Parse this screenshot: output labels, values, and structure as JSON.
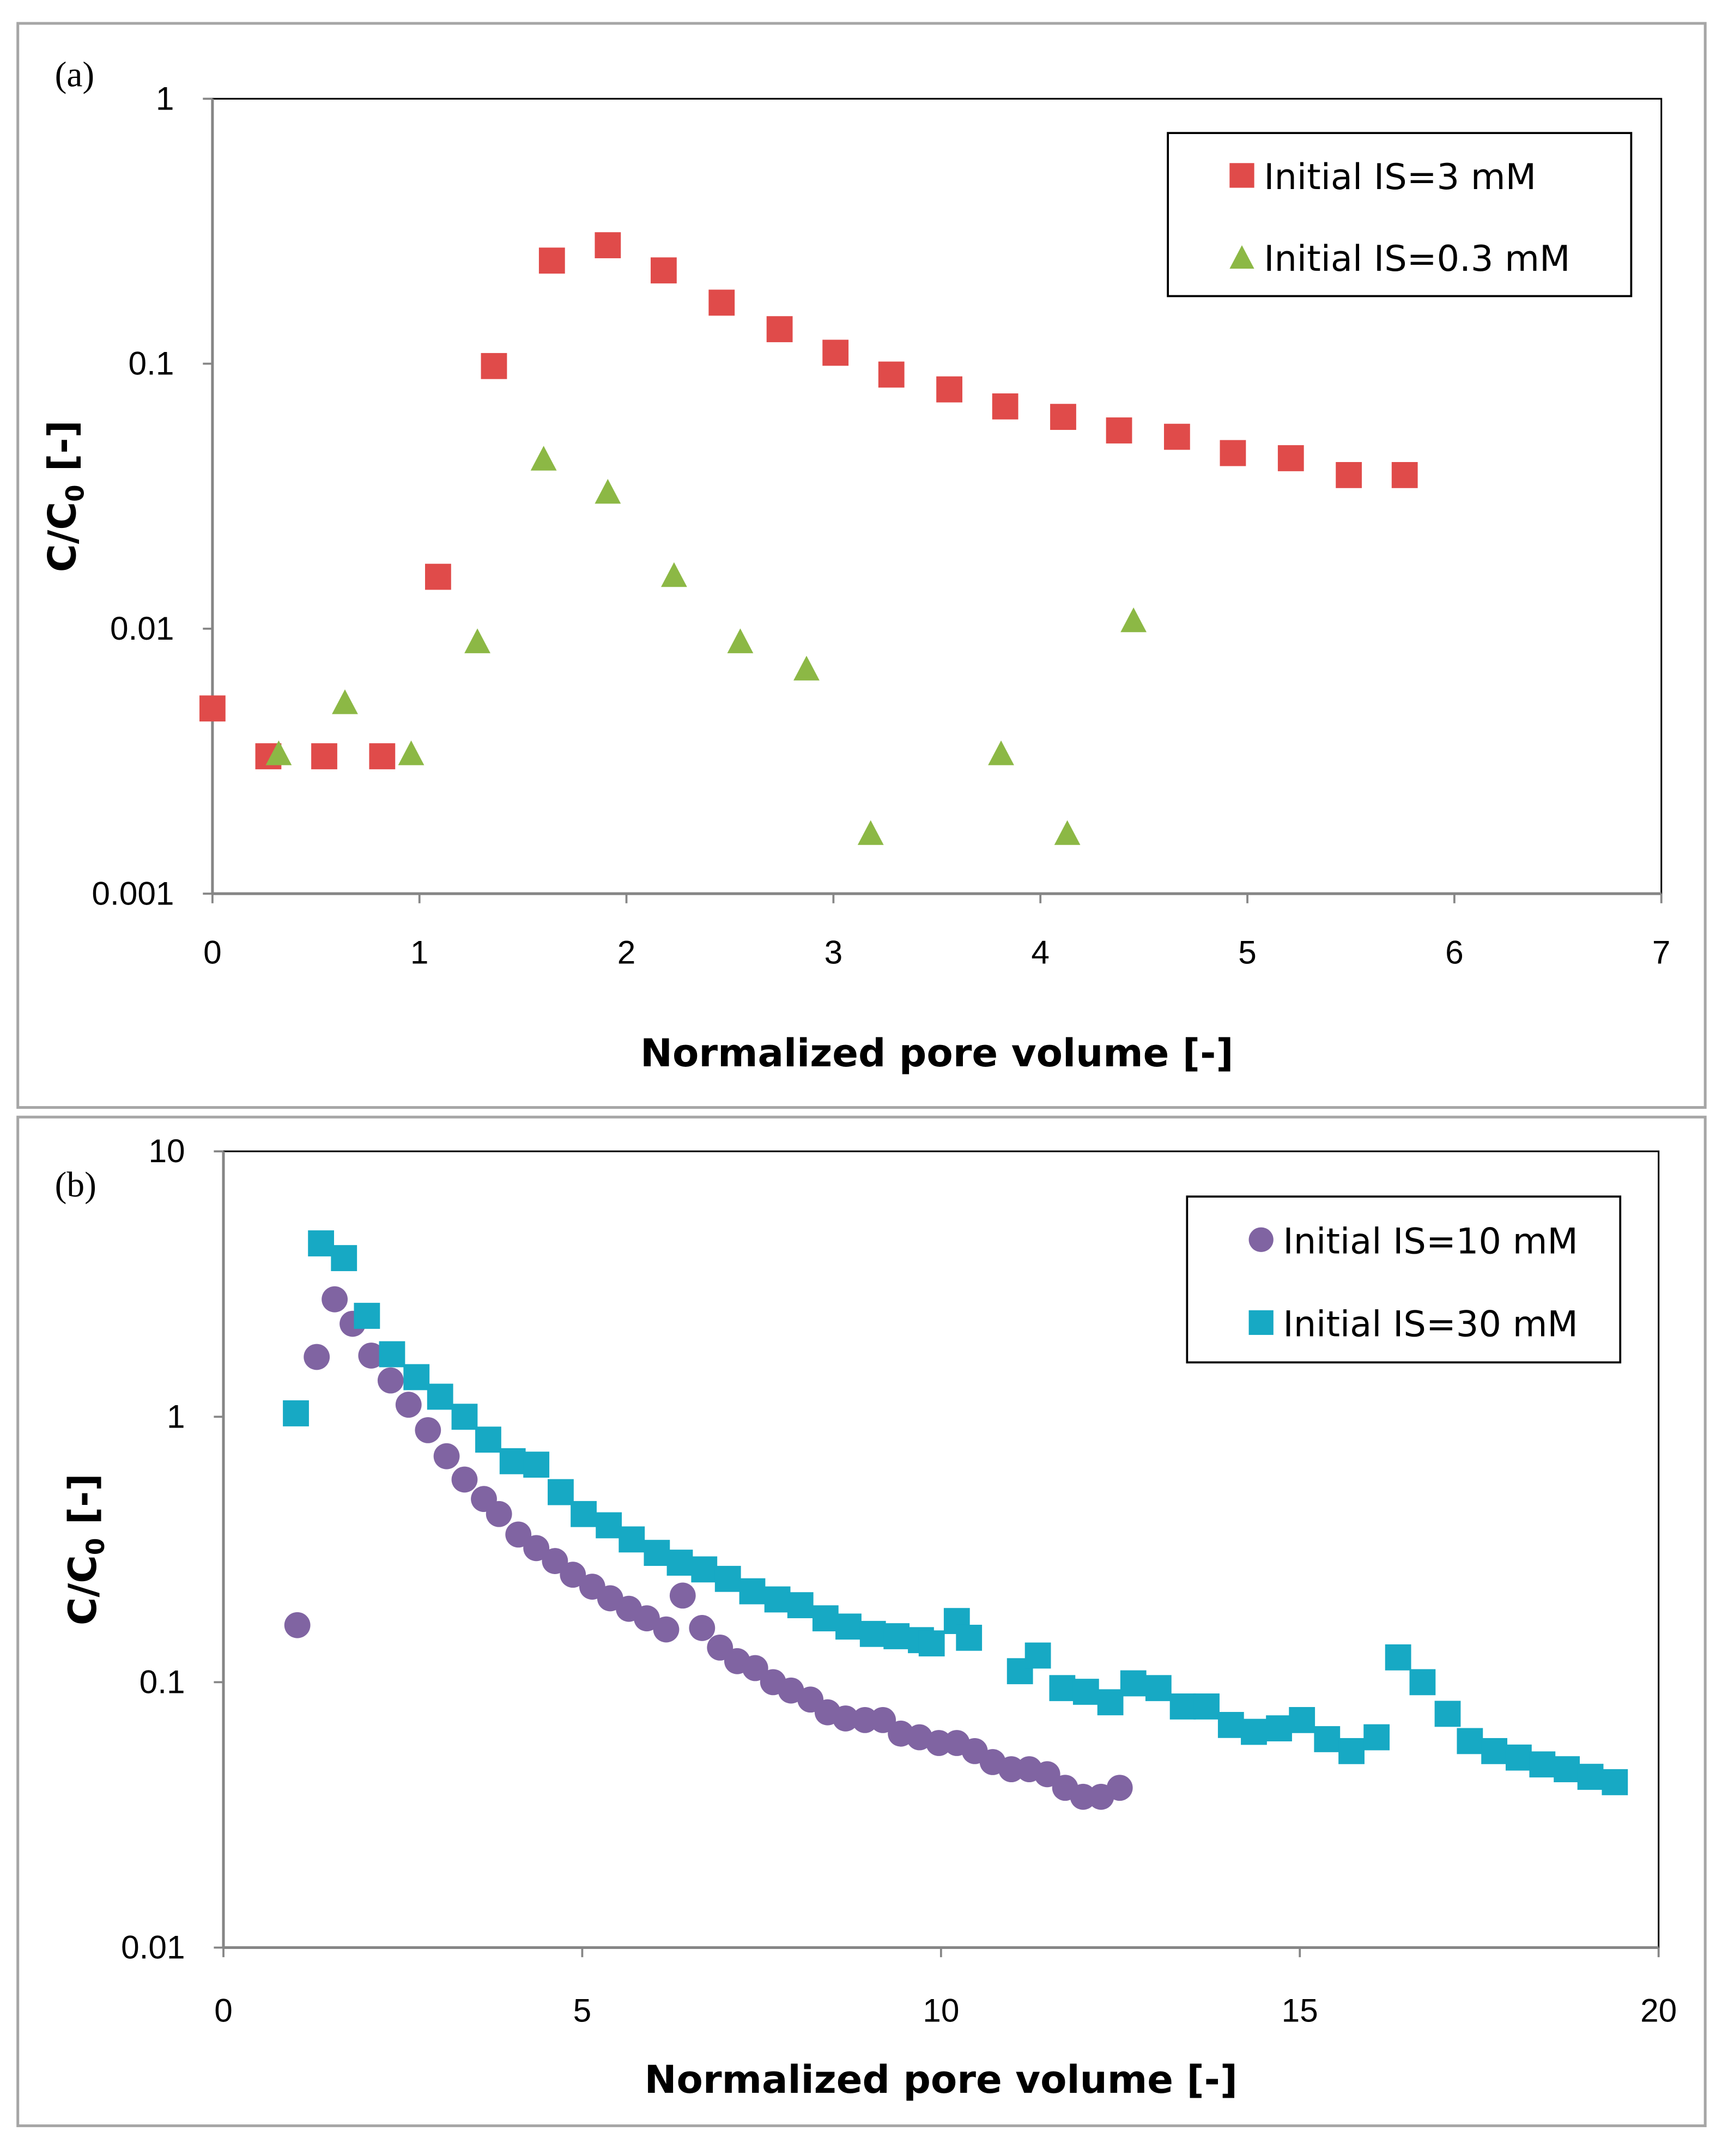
{
  "chart_data": [
    {
      "type": "scatter",
      "panel_label": "(a)",
      "xlabel": "Normalized pore volume [-]",
      "ylabel": "C/C",
      "ylabel_sub": "0",
      "ylabel_suffix": " [-]",
      "xlim": [
        0,
        7
      ],
      "ylim": [
        0.001,
        1
      ],
      "yscale": "log",
      "xticks": [
        "0",
        "1",
        "2",
        "3",
        "4",
        "5",
        "6",
        "7"
      ],
      "yticks": [
        "0.001",
        "0.01",
        "0.1",
        "1"
      ],
      "grid": false,
      "legend_position": "top-right",
      "series": [
        {
          "name": "Initial IS=3 mM",
          "marker": "square",
          "color": "#e04b4a",
          "x": [
            0,
            0.27,
            0.54,
            0.82,
            1.09,
            1.36,
            1.64,
            1.91,
            2.18,
            2.46,
            2.74,
            3.01,
            3.28,
            3.56,
            3.83,
            4.11,
            4.38,
            4.66,
            4.93,
            5.21,
            5.49,
            5.76
          ],
          "y": [
            0.005,
            0.0033,
            0.0033,
            0.0033,
            0.0157,
            0.098,
            0.245,
            0.28,
            0.225,
            0.17,
            0.135,
            0.11,
            0.091,
            0.08,
            0.069,
            0.063,
            0.056,
            0.053,
            0.046,
            0.044,
            0.038,
            0.038
          ]
        },
        {
          "name": "Initial IS=0.3 mM",
          "marker": "triangle",
          "color": "#8cb845",
          "x": [
            0.32,
            0.64,
            0.96,
            1.28,
            1.6,
            1.91,
            2.23,
            2.55,
            2.87,
            3.18,
            3.81,
            4.13,
            4.45
          ],
          "y": [
            0.0034,
            0.0053,
            0.0034,
            0.009,
            0.044,
            0.033,
            0.016,
            0.009,
            0.0071,
            0.0017,
            0.0034,
            0.0017,
            0.0108
          ]
        }
      ]
    },
    {
      "type": "scatter",
      "panel_label": "(b)",
      "xlabel": "Normalized pore volume [-]",
      "ylabel": "C/C",
      "ylabel_sub": "0",
      "ylabel_suffix": " [-]",
      "xlim": [
        0,
        20
      ],
      "ylim": [
        0.01,
        10
      ],
      "yscale": "log",
      "xticks": [
        "0",
        "5",
        "10",
        "15",
        "20"
      ],
      "yticks": [
        "0.01",
        "0.1",
        "1",
        "10"
      ],
      "grid": false,
      "legend_position": "top-right",
      "series": [
        {
          "name": "Initial IS=10 mM",
          "marker": "circle",
          "color": "#8064a2",
          "x": [
            1.03,
            1.3,
            1.55,
            1.8,
            2.06,
            2.33,
            2.58,
            2.85,
            3.11,
            3.36,
            3.63,
            3.84,
            4.11,
            4.36,
            4.62,
            4.87,
            5.14,
            5.39,
            5.65,
            5.9,
            6.17,
            6.4,
            6.67,
            6.92,
            7.16,
            7.41,
            7.66,
            7.91,
            8.18,
            8.42,
            8.67,
            8.94,
            9.19,
            9.44,
            9.7,
            9.97,
            10.22,
            10.47,
            10.72,
            10.98,
            11.23,
            11.48,
            11.73,
            11.98,
            12.23,
            12.49
          ],
          "y": [
            0.164,
            1.68,
            2.77,
            2.24,
            1.7,
            1.37,
            1.11,
            0.89,
            0.71,
            0.58,
            0.49,
            0.43,
            0.36,
            0.32,
            0.286,
            0.254,
            0.229,
            0.207,
            0.189,
            0.174,
            0.158,
            0.212,
            0.16,
            0.135,
            0.12,
            0.113,
            0.1,
            0.093,
            0.086,
            0.077,
            0.073,
            0.072,
            0.072,
            0.064,
            0.062,
            0.059,
            0.059,
            0.055,
            0.05,
            0.047,
            0.047,
            0.045,
            0.04,
            0.037,
            0.037,
            0.04
          ]
        },
        {
          "name": "Initial IS=30 mM",
          "marker": "square",
          "color": "#17a9c4",
          "x": [
            1.01,
            1.36,
            1.68,
            2.0,
            2.35,
            2.69,
            3.02,
            3.36,
            3.69,
            4.03,
            4.36,
            4.7,
            5.02,
            5.37,
            5.69,
            6.04,
            6.36,
            6.7,
            7.03,
            7.37,
            7.72,
            8.04,
            8.39,
            8.71,
            9.05,
            9.38,
            9.72,
            9.87,
            10.22,
            10.39,
            11.1,
            11.35,
            11.69,
            12.02,
            12.36,
            12.68,
            13.03,
            13.37,
            13.7,
            14.04,
            14.36,
            14.71,
            15.03,
            15.38,
            15.72,
            16.07,
            16.37,
            16.71,
            17.06,
            17.37,
            17.71,
            18.05,
            18.38,
            18.72,
            19.05,
            19.39
          ],
          "y": [
            1.03,
            4.5,
            3.96,
            2.4,
            1.72,
            1.41,
            1.19,
            1.0,
            0.82,
            0.68,
            0.66,
            0.52,
            0.43,
            0.39,
            0.345,
            0.307,
            0.282,
            0.266,
            0.245,
            0.22,
            0.205,
            0.195,
            0.174,
            0.162,
            0.152,
            0.149,
            0.144,
            0.14,
            0.17,
            0.147,
            0.11,
            0.126,
            0.095,
            0.092,
            0.084,
            0.099,
            0.095,
            0.081,
            0.081,
            0.069,
            0.065,
            0.067,
            0.072,
            0.061,
            0.055,
            0.062,
            0.124,
            0.1,
            0.076,
            0.06,
            0.055,
            0.052,
            0.049,
            0.047,
            0.044,
            0.042
          ]
        }
      ]
    }
  ]
}
